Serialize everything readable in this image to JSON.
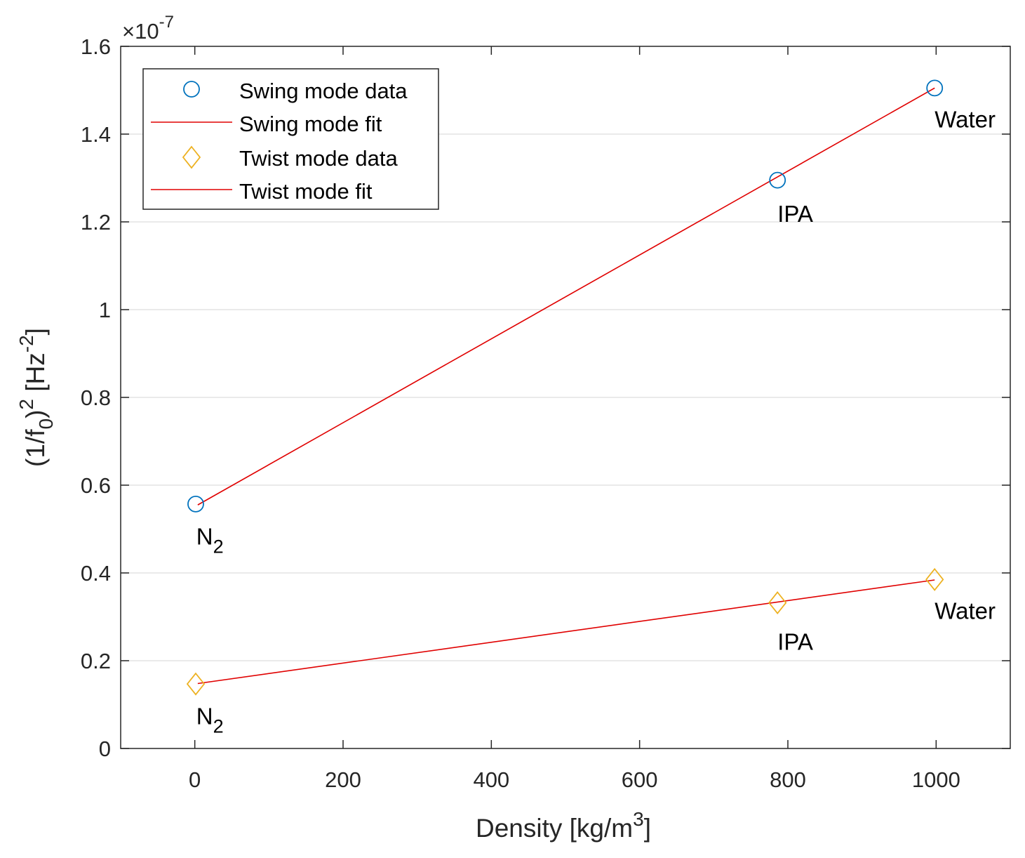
{
  "chart_data": {
    "type": "line",
    "title": "",
    "xlabel": {
      "main": "Density [kg/m",
      "sup": "3",
      "end": "]"
    },
    "ylabel": {
      "open": "(1/f",
      "sub": "0",
      "mid": ")",
      "sup": "2",
      "unit_open": " [Hz",
      "unit_sup": "-2",
      "unit_close": "]"
    },
    "xlim": [
      -100,
      1100
    ],
    "ylim": [
      0,
      1.6
    ],
    "y_multiplier": {
      "base": "×10",
      "exp": "-7"
    },
    "xticks": [
      0,
      200,
      400,
      600,
      800,
      1000
    ],
    "yticks": [
      0,
      0.2,
      0.4,
      0.6,
      0.8,
      1,
      1.2,
      1.4,
      1.6
    ],
    "xtick_labels": [
      "0",
      "200",
      "400",
      "600",
      "800",
      "1000"
    ],
    "ytick_labels": [
      "0",
      "0.2",
      "0.4",
      "0.6",
      "0.8",
      "1",
      "1.2",
      "1.4",
      "1.6"
    ],
    "grid": "horizontal",
    "legend_position": "top-left",
    "series": [
      {
        "name": "Swing mode data",
        "kind": "marker",
        "marker": "circle",
        "color": "#0072BD",
        "x": [
          1.25,
          786,
          998
        ],
        "y": [
          0.557,
          1.295,
          1.505
        ]
      },
      {
        "name": "Swing mode fit",
        "kind": "line",
        "color": "#E00000",
        "x": [
          4,
          998
        ],
        "y": [
          0.555,
          1.505
        ]
      },
      {
        "name": "Twist mode data",
        "kind": "marker",
        "marker": "diamond",
        "color": "#EDB120",
        "x": [
          1.25,
          786,
          998
        ],
        "y": [
          0.147,
          0.332,
          0.385
        ]
      },
      {
        "name": "Twist mode fit",
        "kind": "line",
        "color": "#E00000",
        "x": [
          4,
          998
        ],
        "y": [
          0.148,
          0.384
        ]
      }
    ],
    "annotations": [
      {
        "id": "swing-n2",
        "text": "N",
        "sub": "2",
        "x": 2,
        "y": 0.465
      },
      {
        "id": "swing-ipa",
        "text": "IPA",
        "sub": "",
        "x": 786,
        "y": 1.2
      },
      {
        "id": "swing-water",
        "text": "Water",
        "sub": "",
        "x": 998,
        "y": 1.415
      },
      {
        "id": "twist-n2",
        "text": "N",
        "sub": "2",
        "x": 2,
        "y": 0.055
      },
      {
        "id": "twist-ipa",
        "text": "IPA",
        "sub": "",
        "x": 786,
        "y": 0.225
      },
      {
        "id": "twist-water",
        "text": "Water",
        "sub": "",
        "x": 998,
        "y": 0.295
      }
    ]
  }
}
